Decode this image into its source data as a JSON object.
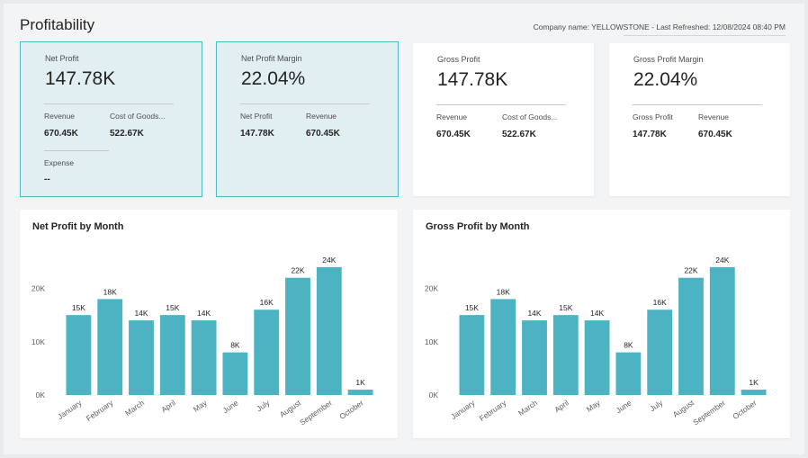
{
  "header": {
    "title": "Profitability",
    "refresh": "Company name: YELLOWSTONE - Last Refreshed: 12/08/2024 08:40 PM"
  },
  "kpis": [
    {
      "label": "Net Profit",
      "value": "147.78K",
      "sub1_label": "Revenue",
      "sub1_value": "670.45K",
      "sub2_label": "Cost of Goods...",
      "sub2_value": "522.67K",
      "sub3_label": "Expense",
      "sub3_value": "--"
    },
    {
      "label": "Net Profit Margin",
      "value": "22.04%",
      "sub1_label": "Net Profit",
      "sub1_value": "147.78K",
      "sub2_label": "Revenue",
      "sub2_value": "670.45K"
    },
    {
      "label": "Gross Profit",
      "value": "147.78K",
      "sub1_label": "Revenue",
      "sub1_value": "670.45K",
      "sub2_label": "Cost of Goods...",
      "sub2_value": "522.67K"
    },
    {
      "label": "Gross Profit Margin",
      "value": "22.04%",
      "sub1_label": "Gross Profit",
      "sub1_value": "147.78K",
      "sub2_label": "Revenue",
      "sub2_value": "670.45K"
    }
  ],
  "colors": {
    "bar": "#4bb3c1",
    "accent_border": "#53b8c4"
  },
  "chart_data": [
    {
      "type": "bar",
      "title": "Net Profit by Month",
      "categories": [
        "January",
        "February",
        "March",
        "April",
        "May",
        "June",
        "July",
        "August",
        "September",
        "October"
      ],
      "values": [
        15,
        18,
        14,
        15,
        14,
        8,
        16,
        22,
        24,
        1
      ],
      "data_labels": [
        "15K",
        "18K",
        "14K",
        "15K",
        "14K",
        "8K",
        "16K",
        "22K",
        "24K",
        "1K"
      ],
      "yticks": [
        0,
        10,
        20
      ],
      "ytick_labels": [
        "0K",
        "10K",
        "20K"
      ],
      "ylim": [
        0,
        26
      ],
      "xlabel": "",
      "ylabel": "",
      "grid": false,
      "legend": "none"
    },
    {
      "type": "bar",
      "title": "Gross Profit by Month",
      "categories": [
        "January",
        "February",
        "March",
        "April",
        "May",
        "June",
        "July",
        "August",
        "September",
        "October"
      ],
      "values": [
        15,
        18,
        14,
        15,
        14,
        8,
        16,
        22,
        24,
        1
      ],
      "data_labels": [
        "15K",
        "18K",
        "14K",
        "15K",
        "14K",
        "8K",
        "16K",
        "22K",
        "24K",
        "1K"
      ],
      "yticks": [
        0,
        10,
        20
      ],
      "ytick_labels": [
        "0K",
        "10K",
        "20K"
      ],
      "ylim": [
        0,
        26
      ],
      "xlabel": "",
      "ylabel": "",
      "grid": false,
      "legend": "none"
    }
  ]
}
